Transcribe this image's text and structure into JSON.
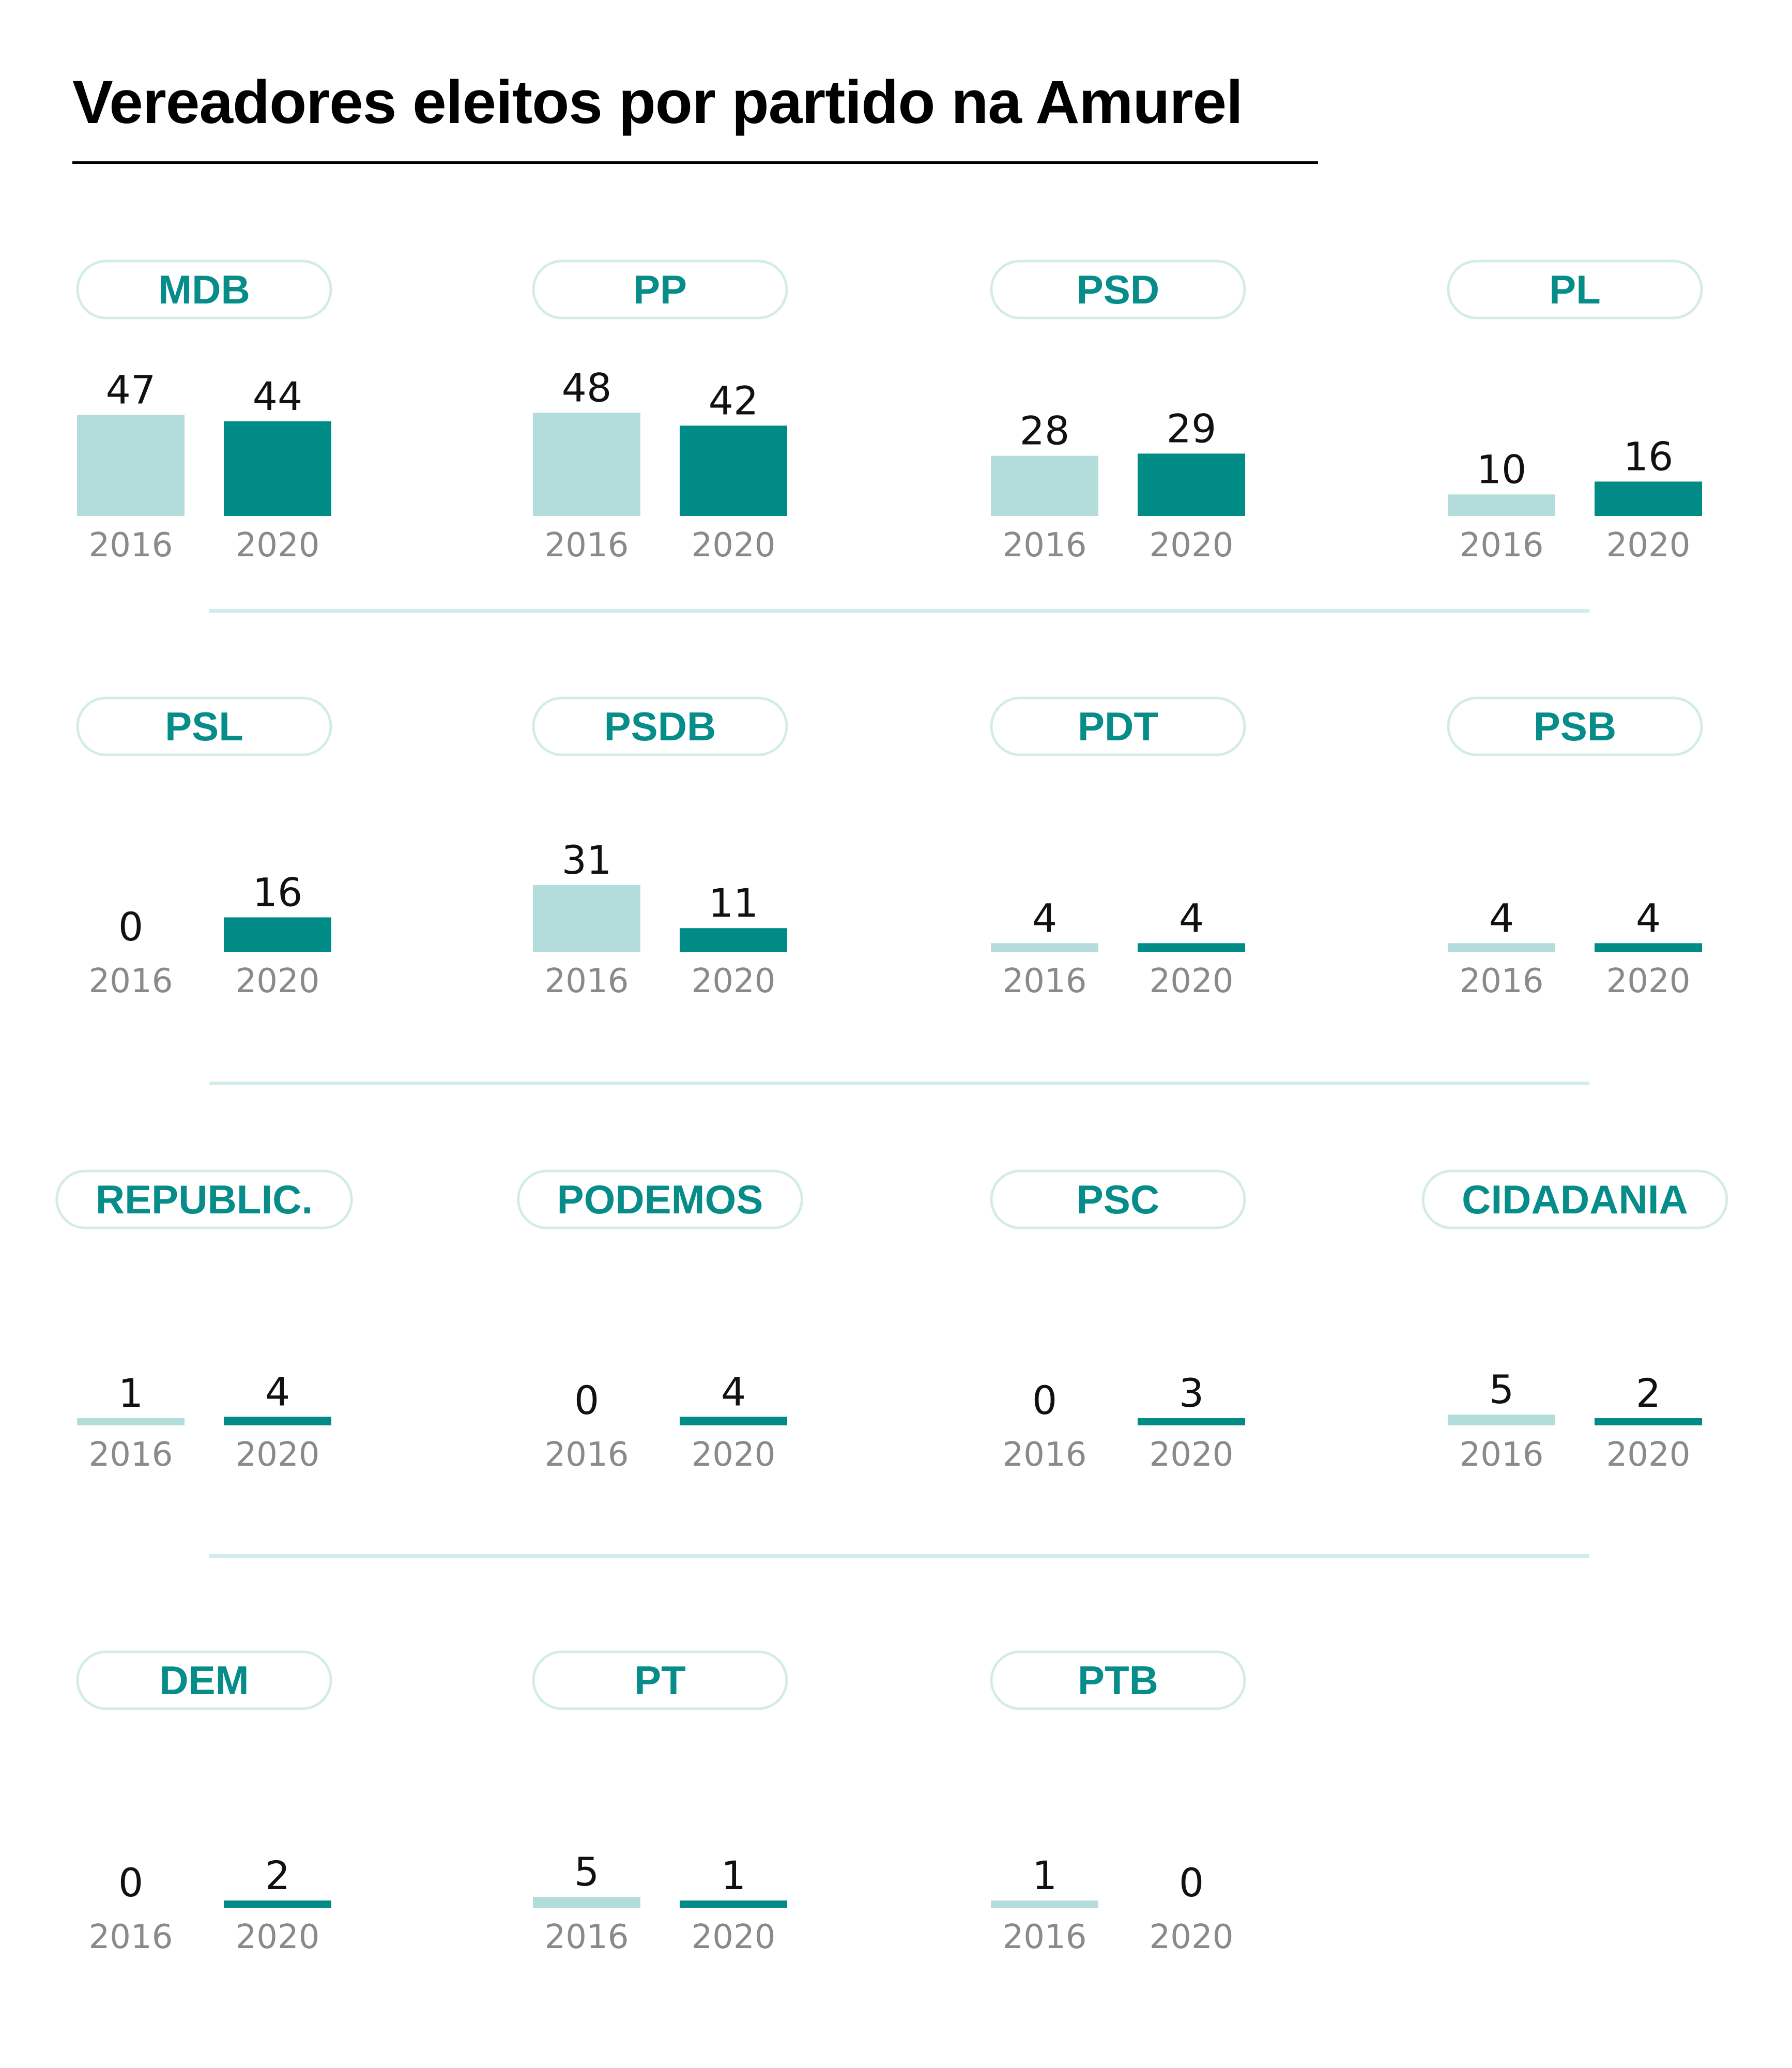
{
  "title": "Vereadores eleitos por partido na Amurel",
  "colors": {
    "bar_2016": "#b3dddb",
    "bar_2020": "#008b87",
    "pill_text": "#068c89",
    "pill_border": "#d3ebea",
    "divider": "#d3ebea"
  },
  "chart_data": {
    "type": "bar",
    "title": "Vereadores eleitos por partido na Amurel",
    "categories": [
      "2016",
      "2020"
    ],
    "panels": [
      {
        "party": "MDB",
        "values": [
          47,
          44
        ]
      },
      {
        "party": "PP",
        "values": [
          48,
          42
        ]
      },
      {
        "party": "PSD",
        "values": [
          28,
          29
        ]
      },
      {
        "party": "PL",
        "values": [
          10,
          16
        ]
      },
      {
        "party": "PSL",
        "values": [
          0,
          16
        ]
      },
      {
        "party": "PSDB",
        "values": [
          31,
          11
        ]
      },
      {
        "party": "PDT",
        "values": [
          4,
          4
        ]
      },
      {
        "party": "PSB",
        "values": [
          4,
          4
        ]
      },
      {
        "party": "REPUBLIC.",
        "values": [
          1,
          4
        ]
      },
      {
        "party": "PODEMOS",
        "values": [
          0,
          4
        ]
      },
      {
        "party": "PSC",
        "values": [
          0,
          3
        ]
      },
      {
        "party": "CIDADANIA",
        "values": [
          5,
          2
        ]
      },
      {
        "party": "DEM",
        "values": [
          0,
          2
        ]
      },
      {
        "party": "PT",
        "values": [
          5,
          1
        ]
      },
      {
        "party": "PTB",
        "values": [
          1,
          0
        ]
      }
    ],
    "grid": false,
    "legend": "none"
  }
}
